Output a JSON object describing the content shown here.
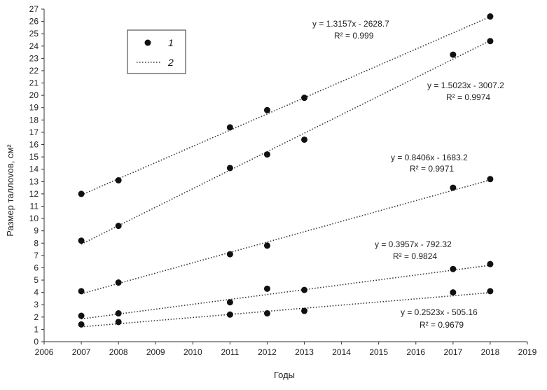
{
  "chart_data": {
    "type": "scatter",
    "title": "",
    "xlabel": "Годы",
    "ylabel": "Размер таллоvов, см²",
    "xlim": [
      2006,
      2019
    ],
    "ylim": [
      0,
      27
    ],
    "x_ticks": [
      "2006",
      "2007",
      "2008",
      "2009",
      "2010",
      "2011",
      "2012",
      "2013",
      "2014",
      "2015",
      "2016",
      "2017",
      "2018",
      "2019"
    ],
    "y_ticks": [
      "0",
      "1",
      "2",
      "3",
      "4",
      "5",
      "6",
      "7",
      "8",
      "9",
      "10",
      "11",
      "12",
      "13",
      "14",
      "15",
      "16",
      "17",
      "18",
      "19",
      "20",
      "21",
      "22",
      "23",
      "24",
      "25",
      "26",
      "27"
    ],
    "grid": false,
    "legend": {
      "position": "top-left",
      "entries": [
        {
          "label": "1",
          "kind": "marker"
        },
        {
          "label": "2",
          "kind": "dotted-line"
        }
      ]
    },
    "series": [
      {
        "x": [
          2007,
          2008,
          2011,
          2012,
          2013,
          2018
        ],
        "y": [
          12.0,
          13.1,
          17.4,
          18.8,
          19.8,
          26.4
        ],
        "trend": {
          "slope": 1.3157,
          "intercept": -2628.7,
          "x_range": [
            2007,
            2018
          ]
        },
        "equation": "y = 1.3157x - 2628.7",
        "r2": "R² = 0.999"
      },
      {
        "x": [
          2007,
          2008,
          2011,
          2012,
          2013,
          2017,
          2018
        ],
        "y": [
          8.2,
          9.4,
          14.1,
          15.2,
          16.4,
          23.3,
          24.4
        ],
        "trend": {
          "slope": 1.5023,
          "intercept": -3007.2,
          "x_range": [
            2007,
            2018
          ]
        },
        "equation": "y = 1.5023x - 3007.2",
        "r2": "R² = 0.9974"
      },
      {
        "x": [
          2007,
          2008,
          2011,
          2012,
          2017,
          2018
        ],
        "y": [
          4.1,
          4.8,
          7.1,
          7.8,
          12.5,
          13.2
        ],
        "trend": {
          "slope": 0.8406,
          "intercept": -1683.2,
          "x_range": [
            2007,
            2018
          ]
        },
        "equation": "y = 0.8406x - 1683.2",
        "r2": "R² = 0.9971"
      },
      {
        "x": [
          2007,
          2008,
          2011,
          2012,
          2013,
          2017,
          2018
        ],
        "y": [
          2.1,
          2.3,
          3.2,
          4.3,
          4.2,
          5.9,
          6.3
        ],
        "trend": {
          "slope": 0.3957,
          "intercept": -792.32,
          "x_range": [
            2007,
            2018
          ]
        },
        "equation": "y = 0.3957x - 792.32",
        "r2": "R² = 0.9824"
      },
      {
        "x": [
          2007,
          2008,
          2011,
          2012,
          2013,
          2017,
          2018
        ],
        "y": [
          1.4,
          1.6,
          2.2,
          2.3,
          2.5,
          4.0,
          4.1
        ],
        "trend": {
          "slope": 0.2523,
          "intercept": -505.16,
          "x_range": [
            2007,
            2018
          ]
        },
        "equation": "y = 0.2523x - 505.16",
        "r2": "R² = 0.9679"
      }
    ],
    "colors": {
      "marker": "#111111",
      "trend": "#333333",
      "axis": "#333333"
    }
  }
}
